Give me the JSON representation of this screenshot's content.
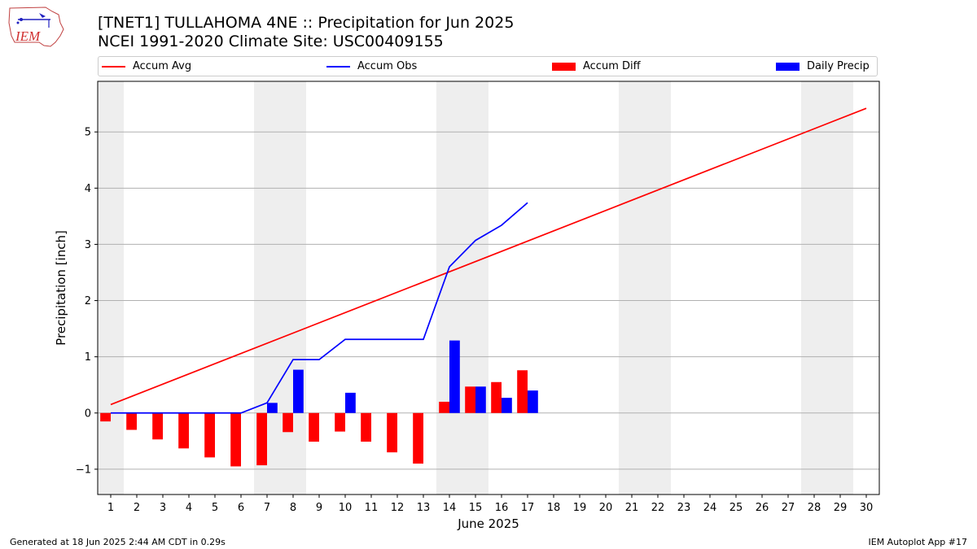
{
  "header": {
    "title_line1": "[TNET1] TULLAHOMA 4NE :: Precipitation for Jun 2025",
    "title_line2": "NCEI 1991-2020 Climate Site: USC00409155",
    "logo_text": "IEM"
  },
  "legend": {
    "accum_avg": "Accum Avg",
    "accum_obs": "Accum Obs",
    "accum_diff": "Accum Diff",
    "daily_precip": "Daily Precip"
  },
  "footer": {
    "generated": "Generated at 18 Jun 2025 2:44 AM CDT in 0.29s",
    "app": "IEM Autoplot App #17"
  },
  "colors": {
    "avg": "#ff0000",
    "obs": "#0000ff",
    "diff": "#ff0000",
    "daily": "#0000ff",
    "weekend_shade": "#eeeeee",
    "grid": "#b0b0b0"
  },
  "chart_data": {
    "type": "bar",
    "xlabel": "June 2025",
    "ylabel": "Precipitation [inch]",
    "xlim": [
      0.5,
      30.5
    ],
    "ylim": [
      -1.45,
      5.9
    ],
    "x_ticks": [
      1,
      2,
      3,
      4,
      5,
      6,
      7,
      8,
      9,
      10,
      11,
      12,
      13,
      14,
      15,
      16,
      17,
      18,
      19,
      20,
      21,
      22,
      23,
      24,
      25,
      26,
      27,
      28,
      29,
      30
    ],
    "y_ticks": [
      -1,
      0,
      1,
      2,
      3,
      4,
      5
    ],
    "y_tick_labels": [
      "−1",
      "0",
      "1",
      "2",
      "3",
      "4",
      "5"
    ],
    "grid": "horizontal",
    "legend_position": "top",
    "shaded_days": [
      1,
      7,
      8,
      14,
      15,
      21,
      22,
      28,
      29
    ],
    "series": [
      {
        "name": "Accum Avg",
        "kind": "line",
        "x": [
          1,
          30
        ],
        "values": [
          0.15,
          5.42
        ]
      },
      {
        "name": "Accum Obs",
        "kind": "line",
        "x": [
          1,
          2,
          3,
          4,
          5,
          6,
          7,
          8,
          9,
          10,
          11,
          12,
          13,
          14,
          15,
          16,
          17
        ],
        "values": [
          0,
          0,
          0,
          0,
          0,
          0,
          0.18,
          0.95,
          0.95,
          1.31,
          1.31,
          1.31,
          1.31,
          2.6,
          3.07,
          3.34,
          3.74
        ]
      },
      {
        "name": "Accum Diff",
        "kind": "bar",
        "x": [
          1,
          2,
          3,
          4,
          5,
          6,
          7,
          8,
          9,
          10,
          11,
          12,
          13,
          14,
          15,
          16,
          17
        ],
        "values": [
          -0.15,
          -0.3,
          -0.47,
          -0.63,
          -0.79,
          -0.95,
          -0.93,
          -0.34,
          -0.51,
          -0.33,
          -0.51,
          -0.7,
          -0.9,
          0.2,
          0.47,
          0.55,
          0.76
        ]
      },
      {
        "name": "Daily Precip",
        "kind": "bar",
        "x": [
          7,
          8,
          10,
          14,
          15,
          16,
          17
        ],
        "values": [
          0.18,
          0.77,
          0.36,
          1.29,
          0.47,
          0.27,
          0.4
        ]
      }
    ]
  }
}
